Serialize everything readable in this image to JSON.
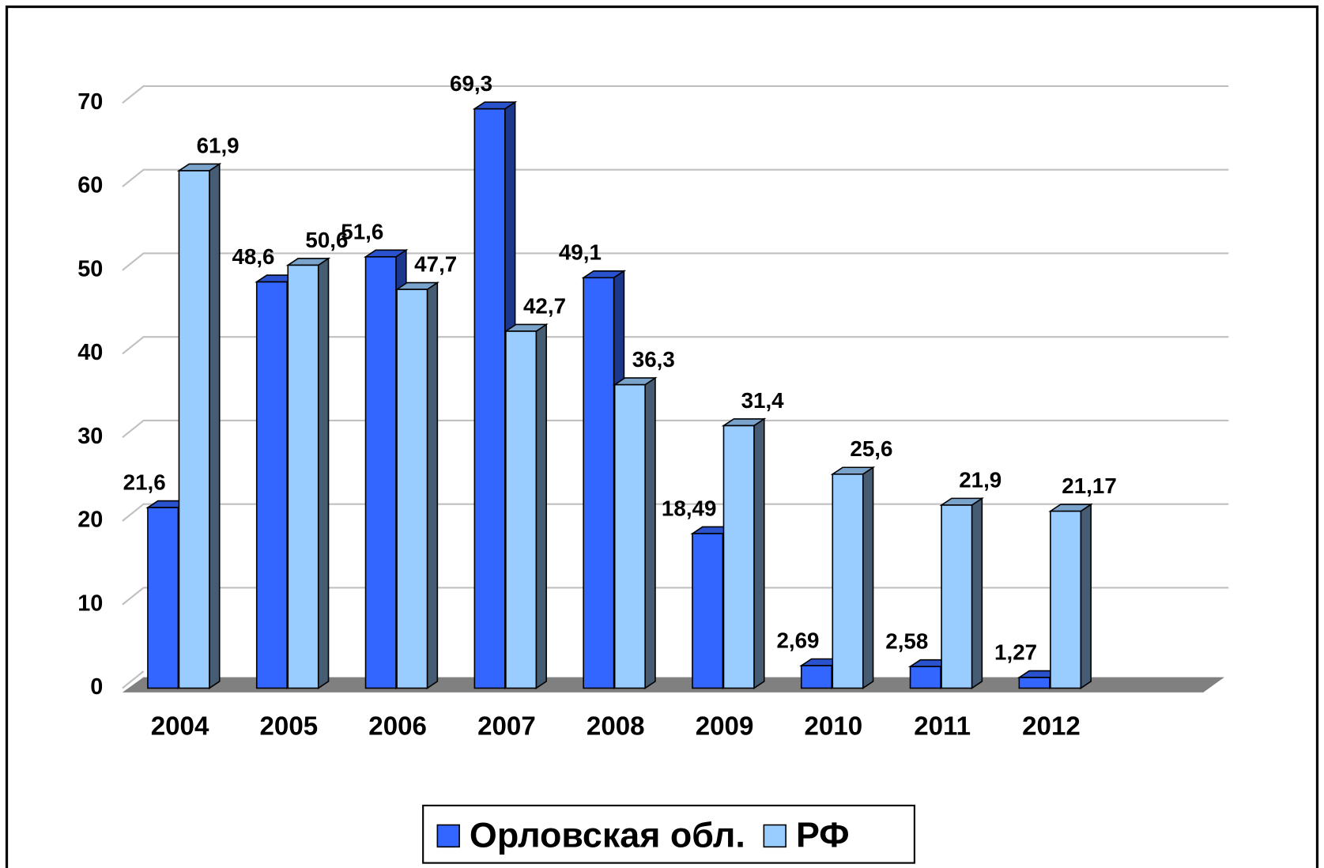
{
  "chart_data": {
    "type": "bar3d",
    "categories": [
      "2004",
      "2005",
      "2006",
      "2007",
      "2008",
      "2009",
      "2010",
      "2011",
      "2012"
    ],
    "series": [
      {
        "name": "Орловская обл.",
        "color": "#3366ff",
        "values": [
          21.6,
          48.6,
          51.6,
          69.3,
          49.1,
          18.49,
          2.69,
          2.58,
          1.27
        ],
        "value_labels": [
          "21,6",
          "48,6",
          "51,6",
          "69,3",
          "49,1",
          "18,49",
          "2,69",
          "2,58",
          "1,27"
        ]
      },
      {
        "name": "РФ",
        "color": "#99ccff",
        "values": [
          61.9,
          50.6,
          47.7,
          42.7,
          36.3,
          31.4,
          25.6,
          21.9,
          21.17
        ],
        "value_labels": [
          "61,9",
          "50,6",
          "47,7",
          "42,7",
          "36,3",
          "31,4",
          "25,6",
          "21,9",
          "21,17"
        ]
      }
    ],
    "ylim": [
      0,
      70
    ],
    "yticks": [
      0,
      10,
      20,
      30,
      40,
      50,
      60,
      70
    ],
    "grid": true,
    "legend": "bottom"
  }
}
